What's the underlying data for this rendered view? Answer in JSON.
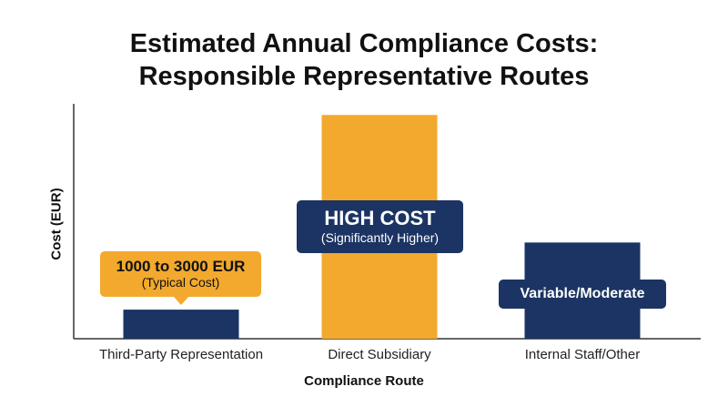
{
  "chart_data": {
    "type": "bar",
    "title_line1": "Estimated Annual Compliance Costs:",
    "title_line2": "Responsible Representative Routes",
    "xlabel": "Compliance Route",
    "ylabel": "Cost (EUR)",
    "categories": [
      "Third-Party Representation",
      "Direct Subsidiary",
      "Internal Staff/Other"
    ],
    "values": [
      13,
      100,
      43
    ],
    "ylim": [
      0,
      105
    ],
    "colors": [
      "#1b3463",
      "#f2a92e",
      "#1b3463"
    ],
    "annotations": [
      {
        "main": "1000 to 3000 EUR",
        "sub": "(Typical Cost)"
      },
      {
        "main": "HIGH COST",
        "sub": "(Significantly Higher)"
      },
      {
        "main": "Variable/Moderate",
        "sub": ""
      }
    ],
    "grid": false,
    "legend": "none"
  }
}
